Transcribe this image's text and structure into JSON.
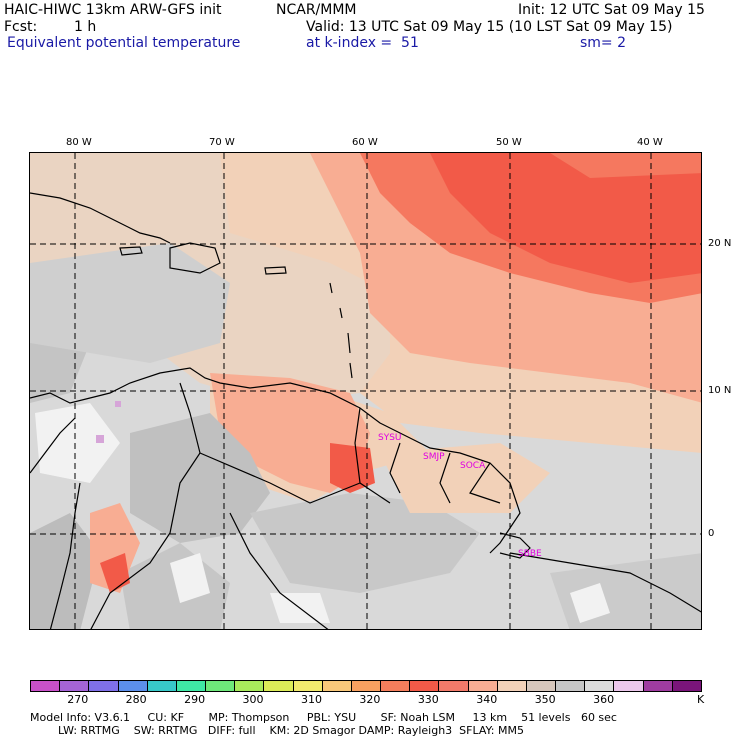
{
  "header": {
    "model_title": "HAIC-HIWC 13km ARW-GFS init",
    "org": "NCAR/MMM",
    "init": "Init: 12 UTC Sat 09 May 15",
    "fcst_label": "Fcst:",
    "fcst_value": "1 h",
    "valid": "Valid: 13 UTC Sat 09 May 15 (10 LST Sat 09 May 15)",
    "field_name": "Equivalent potential temperature",
    "level": "at k-index =  51",
    "smoothing": "sm= 2"
  },
  "map": {
    "lon_labels": [
      "80 W",
      "70 W",
      "60 W",
      "50 W",
      "40 W"
    ],
    "lat_labels": [
      "20 N",
      "10 N",
      "0"
    ],
    "stations": [
      "SYSU",
      "SMJP",
      "SOCA",
      "SBBE"
    ],
    "colors": {
      "land_gray": "#d9d9d9",
      "light_tan": "#f2d1b8",
      "salmon": "#f8ad93",
      "orange_red": "#f5785f",
      "red": "#f25a48",
      "dark_gray": "#b5b5b5",
      "mid_gray": "#c8c8c8",
      "white": "#f2f2f2",
      "lavender": "#d6a5d8"
    }
  },
  "colorbar": {
    "colors": [
      "#c951c9",
      "#a564d6",
      "#7f70e8",
      "#5c8fea",
      "#38c9c9",
      "#3fe8a5",
      "#6ee87a",
      "#a8ea5c",
      "#dcec58",
      "#f2ea6e",
      "#f9c87a",
      "#f7a060",
      "#f47e5c",
      "#f25a48",
      "#f27a6a",
      "#f8ad93",
      "#f2d1b8",
      "#d7c7bc",
      "#c6c6c6",
      "#dcdcdc",
      "#ecc8ec",
      "#9f3ca0",
      "#7a157a"
    ],
    "labels": [
      "270",
      "280",
      "290",
      "300",
      "310",
      "320",
      "330",
      "340",
      "350",
      "360"
    ],
    "unit": "K"
  },
  "footer": {
    "line1": "Model Info: V3.6.1     CU: KF       MP: Thompson     PBL: YSU       SF: Noah LSM     13 km    51 levels   60 sec",
    "line2": "        LW: RRTMG    SW: RRTMG   DIFF: full    KM: 2D Smagor DAMP: Rayleigh3  SFLAY: MM5"
  }
}
